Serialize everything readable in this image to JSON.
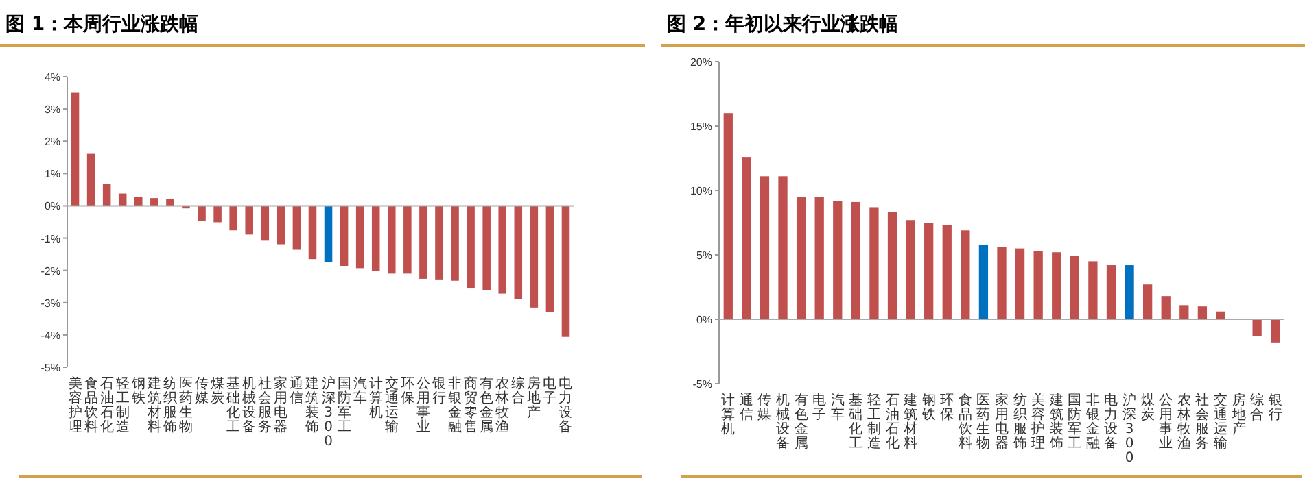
{
  "chart_data": [
    {
      "type": "bar",
      "title": "图 1：本周行业涨跌幅",
      "categories": [
        "美容护理",
        "食品饮料",
        "石油石化",
        "轻工制造",
        "钢铁",
        "建筑材料",
        "纺织服饰",
        "医药生物",
        "传媒",
        "煤炭",
        "基础化工",
        "机械设备",
        "社会服务",
        "家用电器",
        "通信",
        "建筑装饰",
        "沪深300",
        "国防军工",
        "汽车",
        "计算机",
        "交通运输",
        "环保",
        "公用事业",
        "银行",
        "非银金融",
        "商贸零售",
        "有色金属",
        "农林牧渔",
        "综合",
        "房地产",
        "电子",
        "电力设备"
      ],
      "values": [
        3.5,
        1.61,
        0.68,
        0.38,
        0.28,
        0.24,
        0.21,
        -0.08,
        -0.46,
        -0.51,
        -0.76,
        -0.89,
        -1.08,
        -1.19,
        -1.36,
        -1.65,
        -1.74,
        -1.86,
        -1.93,
        -2.01,
        -2.1,
        -2.1,
        -2.26,
        -2.28,
        -2.32,
        -2.56,
        -2.61,
        -2.72,
        -2.89,
        -3.15,
        -3.29,
        -4.06
      ],
      "colors": [
        "#c0504d",
        "#c0504d",
        "#c0504d",
        "#c0504d",
        "#c0504d",
        "#c0504d",
        "#c0504d",
        "#c0504d",
        "#c0504d",
        "#c0504d",
        "#c0504d",
        "#c0504d",
        "#c0504d",
        "#c0504d",
        "#c0504d",
        "#c0504d",
        "#0070c0",
        "#c0504d",
        "#c0504d",
        "#c0504d",
        "#c0504d",
        "#c0504d",
        "#c0504d",
        "#c0504d",
        "#c0504d",
        "#c0504d",
        "#c0504d",
        "#c0504d",
        "#c0504d",
        "#c0504d",
        "#c0504d",
        "#c0504d"
      ],
      "ylim": [
        -5,
        4
      ],
      "yticks": [
        {
          "value": -5,
          "label": "-5%"
        },
        {
          "value": -4,
          "label": "-4%"
        },
        {
          "value": -3,
          "label": "-3%"
        },
        {
          "value": -2,
          "label": "-2%"
        },
        {
          "value": -1,
          "label": "-1%"
        },
        {
          "value": 0,
          "label": "0%"
        },
        {
          "value": 1,
          "label": "1%"
        },
        {
          "value": 2,
          "label": "2%"
        },
        {
          "value": 3,
          "label": "3%"
        },
        {
          "value": 4,
          "label": "4%"
        }
      ]
    },
    {
      "type": "bar",
      "title": "图 2：年初以来行业涨跌幅",
      "categories": [
        "计算机",
        "通信",
        "传媒",
        "机械设备",
        "有色金属",
        "电子",
        "汽车",
        "基础化工",
        "轻工制造",
        "石油石化",
        "建筑材料",
        "钢铁",
        "环保",
        "食品饮料",
        "医药生物",
        "家用电器",
        "纺织服饰",
        "美容护理",
        "建筑装饰",
        "国防军工",
        "非银金融",
        "电力设备",
        "沪深300",
        "煤炭",
        "公用事业",
        "农林牧渔",
        "社会服务",
        "交通运输",
        "房地产",
        "综合",
        "银行"
      ],
      "values": [
        16.0,
        12.6,
        11.1,
        11.1,
        9.5,
        9.5,
        9.2,
        9.1,
        8.7,
        8.3,
        7.7,
        7.5,
        7.3,
        6.9,
        5.8,
        5.6,
        5.5,
        5.3,
        5.2,
        4.9,
        4.5,
        4.2,
        4.2,
        2.7,
        1.8,
        1.1,
        1.0,
        0.6,
        0,
        -1.3,
        -1.8
      ],
      "colors": [
        "#c0504d",
        "#c0504d",
        "#c0504d",
        "#c0504d",
        "#c0504d",
        "#c0504d",
        "#c0504d",
        "#c0504d",
        "#c0504d",
        "#c0504d",
        "#c0504d",
        "#c0504d",
        "#c0504d",
        "#c0504d",
        "#0070c0",
        "#c0504d",
        "#c0504d",
        "#c0504d",
        "#c0504d",
        "#c0504d",
        "#c0504d",
        "#c0504d",
        "#0070c0",
        "#c0504d",
        "#c0504d",
        "#c0504d",
        "#c0504d",
        "#c0504d",
        "#c0504d",
        "#c0504d",
        "#c0504d"
      ],
      "ylim": [
        -5,
        20
      ],
      "yticks": [
        {
          "value": -5,
          "label": "-5%"
        },
        {
          "value": 0,
          "label": "0%"
        },
        {
          "value": 5,
          "label": "5%"
        },
        {
          "value": 10,
          "label": "10%"
        },
        {
          "value": 15,
          "label": "15%"
        },
        {
          "value": 20,
          "label": "20%"
        }
      ]
    }
  ]
}
